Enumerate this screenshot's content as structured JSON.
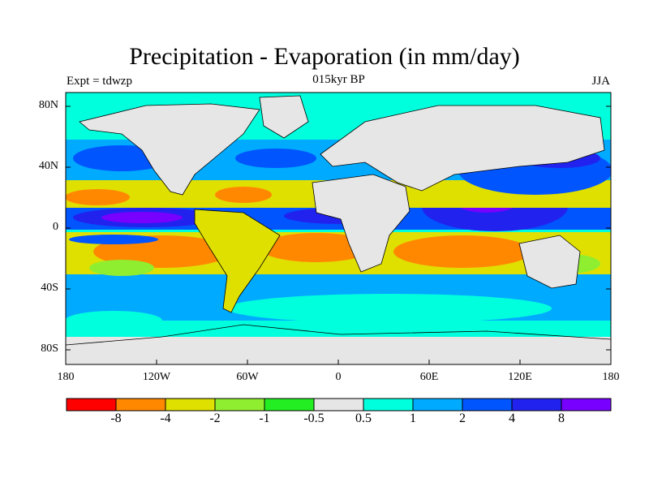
{
  "header": {
    "title": "Precipitation - Evaporation (in mm/day)",
    "subtitle": "015kyr BP",
    "left_label": "Expt = tdwzp",
    "right_label": "JJA"
  },
  "axes": {
    "y_ticks": [
      "80N",
      "40N",
      "0",
      "40S",
      "80S"
    ],
    "x_ticks": [
      "180",
      "120W",
      "60W",
      "0",
      "60E",
      "120E",
      "180"
    ]
  },
  "colorbar": {
    "labels": [
      "-8",
      "-4",
      "-2",
      "-1",
      "-0.5",
      "0.5",
      "1",
      "2",
      "4",
      "8"
    ],
    "colors": [
      "#ff0000",
      "#ff8800",
      "#e0e000",
      "#90ee30",
      "#22ee22",
      "#e6e6e6",
      "#00ffdd",
      "#00aaff",
      "#0055ff",
      "#2222ee",
      "#7700ff"
    ]
  },
  "colors": {
    "ocean_background": "#00e0d8",
    "land": "#e6e6e6",
    "coastline": "#000000"
  }
}
